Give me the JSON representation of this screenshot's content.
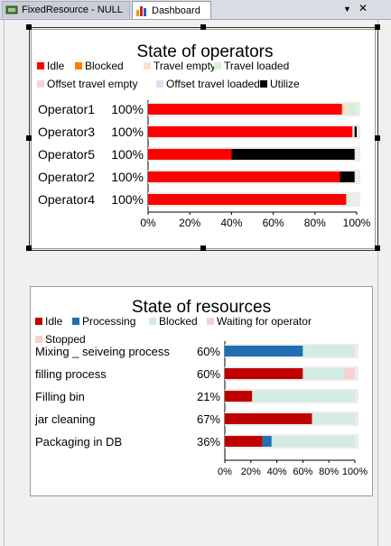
{
  "tabs": [
    {
      "label": "FixedResource - NULL",
      "icon": "fixed-resource-icon"
    },
    {
      "label": "Dashboard",
      "icon": "bar-chart-icon"
    }
  ],
  "window_controls": {
    "menu": "▼",
    "close": "✕"
  },
  "chart_data": [
    {
      "type": "bar",
      "orientation": "horizontal",
      "stacked": true,
      "title": "State of operators",
      "categories": [
        "Operator1",
        "Operator3",
        "Operator5",
        "Operator2",
        "Operator4"
      ],
      "value_labels": [
        "100%",
        "100%",
        "100%",
        "100%",
        "100%"
      ],
      "series": [
        {
          "name": "Idle",
          "color": "#ff0000",
          "values": [
            93,
            98,
            40,
            92,
            95
          ]
        },
        {
          "name": "Blocked",
          "color": "#ff8000",
          "values": [
            0,
            0,
            0,
            0,
            0
          ]
        },
        {
          "name": "Travel empty",
          "color": "#fde2c8",
          "values": [
            3,
            0,
            0,
            0,
            0
          ]
        },
        {
          "name": "Travel loaded",
          "color": "#d6f0d6",
          "values": [
            4,
            1,
            0,
            0,
            2
          ]
        },
        {
          "name": "Offset travel empty",
          "color": "#f2d6d6",
          "values": [
            0,
            0,
            0,
            0,
            0
          ]
        },
        {
          "name": "Offset travel loaded",
          "color": "#e4dcf4",
          "values": [
            0,
            0,
            0,
            0,
            0
          ]
        },
        {
          "name": "Utilize",
          "color": "#000000",
          "values": [
            0,
            1,
            59,
            7,
            0
          ]
        }
      ],
      "xticks": [
        "0%",
        "20%",
        "40%",
        "60%",
        "80%",
        "100%"
      ],
      "xlim": [
        0,
        100
      ],
      "legend": "top"
    },
    {
      "type": "bar",
      "orientation": "horizontal",
      "stacked": true,
      "title": "State of resources",
      "categories": [
        "Mixing _ seiveing process",
        "filling process",
        "Filling bin",
        "jar cleaning",
        "Packaging in DB"
      ],
      "value_labels": [
        "60%",
        "60%",
        "21%",
        "67%",
        "36%"
      ],
      "series": [
        {
          "name": "Idle",
          "color": "#c00000",
          "values": [
            0,
            60,
            21,
            67,
            29
          ]
        },
        {
          "name": "Processing",
          "color": "#1f6fb2",
          "values": [
            60,
            0,
            0,
            0,
            7
          ]
        },
        {
          "name": "Blocked",
          "color": "#d2ece2",
          "values": [
            40,
            32,
            79,
            33,
            64
          ]
        },
        {
          "name": "Waiting for operator",
          "color": "#f6d0cf",
          "values": [
            0,
            8,
            0,
            0,
            0
          ]
        },
        {
          "name": "Stopped",
          "color": "#f6d0cf",
          "values": [
            0,
            0,
            0,
            0,
            0
          ]
        }
      ],
      "xticks": [
        "0%",
        "20%",
        "40%",
        "60%",
        "80%",
        "100%"
      ],
      "xlim": [
        0,
        100
      ],
      "legend": "top"
    }
  ]
}
